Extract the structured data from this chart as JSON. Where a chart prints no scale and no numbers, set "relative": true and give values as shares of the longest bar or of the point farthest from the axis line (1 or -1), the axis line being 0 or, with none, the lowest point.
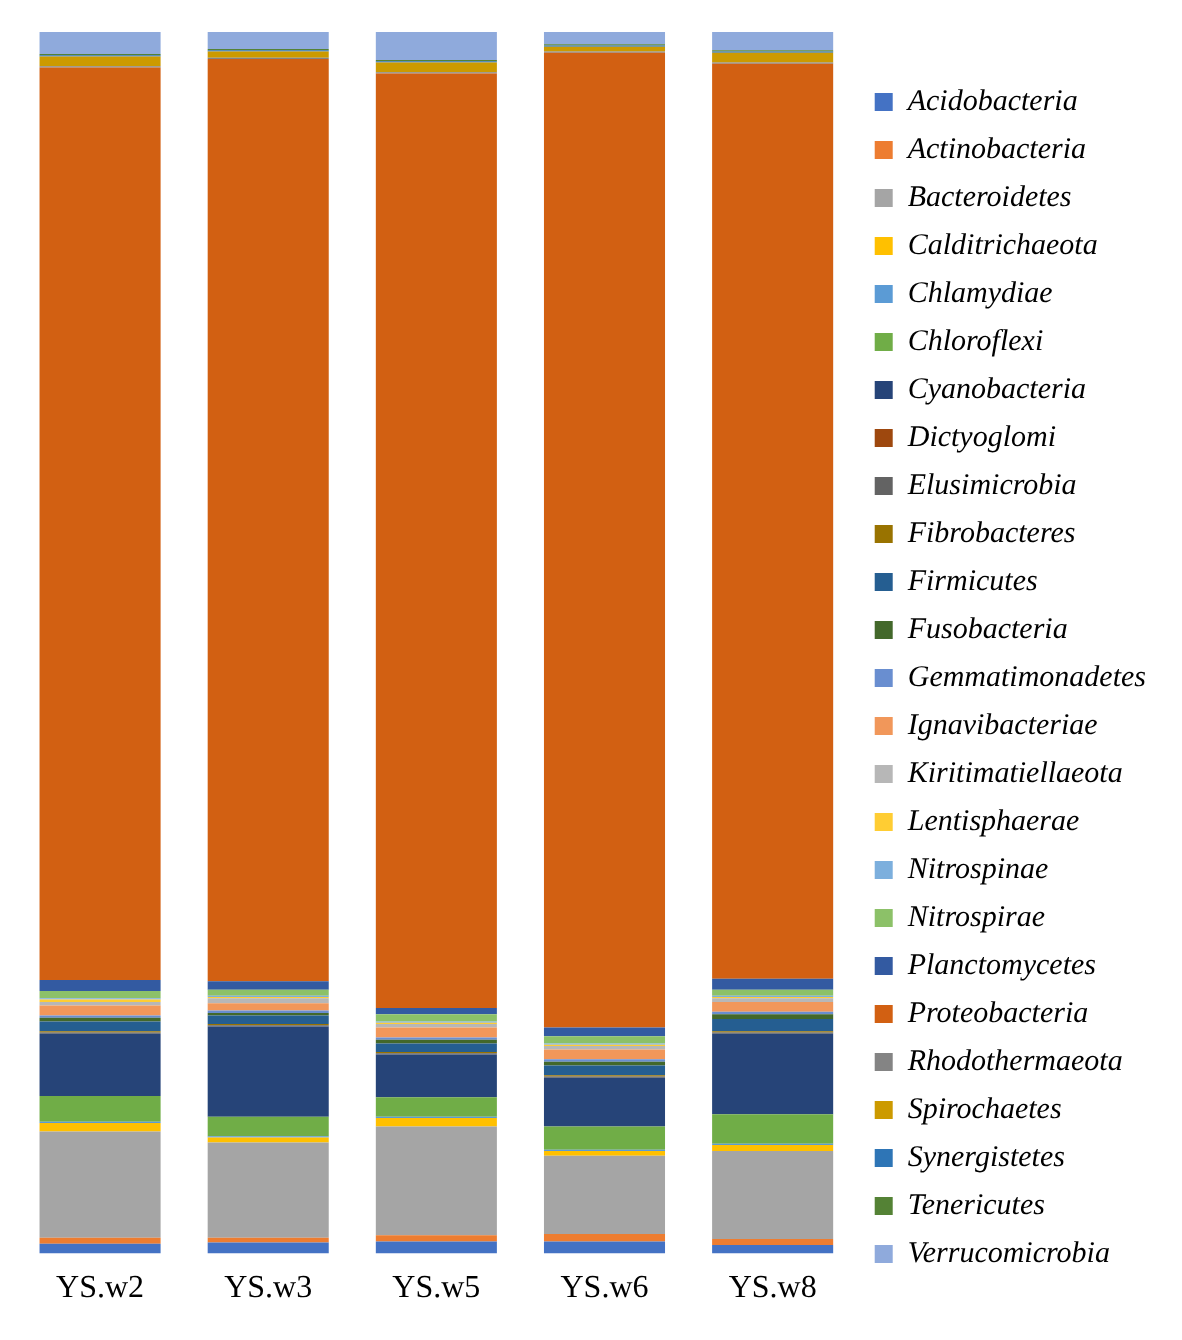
{
  "chart_data": {
    "type": "bar",
    "stacked": true,
    "relative": true,
    "legend": "right",
    "grid": false,
    "categories": [
      "YS.w2",
      "YS.w3",
      "YS.w5",
      "YS.w6",
      "YS.w8"
    ],
    "series": [
      {
        "name": "Acidobacteria",
        "color": "#4472c4",
        "values": [
          0.008,
          0.009,
          0.01,
          0.01,
          0.007
        ]
      },
      {
        "name": "Actinobacteria",
        "color": "#ed7d31",
        "values": [
          0.005,
          0.004,
          0.005,
          0.006,
          0.005
        ]
      },
      {
        "name": "Bacteroidetes",
        "color": "#a5a5a5",
        "values": [
          0.087,
          0.078,
          0.089,
          0.064,
          0.072
        ]
      },
      {
        "name": "Calditrichaeota",
        "color": "#ffc000",
        "values": [
          0.007,
          0.004,
          0.007,
          0.004,
          0.005
        ]
      },
      {
        "name": "Chlamydiae",
        "color": "#5b9bd5",
        "values": [
          0.001,
          0.001,
          0.001,
          0.001,
          0.001
        ]
      },
      {
        "name": "Chloroflexi",
        "color": "#70ad47",
        "values": [
          0.021,
          0.016,
          0.016,
          0.019,
          0.024
        ]
      },
      {
        "name": "Cyanobacteria",
        "color": "#264478",
        "values": [
          0.051,
          0.074,
          0.035,
          0.04,
          0.066
        ]
      },
      {
        "name": "Dictyoglomi",
        "color": "#9e480e",
        "values": [
          null,
          null,
          null,
          null,
          null
        ]
      },
      {
        "name": "Elusimicrobia",
        "color": "#636363",
        "values": [
          0.001,
          0.001,
          0.001,
          0.001,
          0.001
        ]
      },
      {
        "name": "Fibrobacteres",
        "color": "#997300",
        "values": [
          0.001,
          0.001,
          0.001,
          0.001,
          0.001
        ]
      },
      {
        "name": "Firmicutes",
        "color": "#255e91",
        "values": [
          0.008,
          0.007,
          0.007,
          0.008,
          0.01
        ]
      },
      {
        "name": "Fusobacteria",
        "color": "#43682b",
        "values": [
          0.003,
          0.002,
          0.003,
          0.003,
          0.004
        ]
      },
      {
        "name": "Gemmatimonadetes",
        "color": "#698ed0",
        "values": [
          0.002,
          0.002,
          0.002,
          0.002,
          0.002
        ]
      },
      {
        "name": "Ignavibacteriae",
        "color": "#f1975a",
        "values": [
          0.008,
          0.006,
          0.008,
          0.008,
          0.008
        ]
      },
      {
        "name": "Kiritimatiellaeota",
        "color": "#b7b7b7",
        "values": [
          0.003,
          0.004,
          0.003,
          0.003,
          0.003
        ]
      },
      {
        "name": "Lentisphaerae",
        "color": "#ffcd33",
        "values": [
          0.002,
          0.001,
          0.001,
          0.001,
          0.001
        ]
      },
      {
        "name": "Nitrospinae",
        "color": "#7cafdd",
        "values": [
          0.001,
          0.001,
          0.001,
          0.001,
          0.001
        ]
      },
      {
        "name": "Nitrospirae",
        "color": "#8cc168",
        "values": [
          0.006,
          0.005,
          0.006,
          0.006,
          0.005
        ]
      },
      {
        "name": "Planctomycetes",
        "color": "#335aa1",
        "values": [
          0.009,
          0.007,
          0.005,
          0.007,
          0.009
        ]
      },
      {
        "name": "Proteobacteria",
        "color": "#d26012",
        "values": [
          0.747,
          0.755,
          0.765,
          0.798,
          0.749
        ]
      },
      {
        "name": "Rhodothermaeota",
        "color": "#848484",
        "values": [
          0.001,
          0.001,
          0.001,
          0.001,
          0.001
        ]
      },
      {
        "name": "Spirochaetes",
        "color": "#cc9a00",
        "values": [
          0.008,
          0.005,
          0.008,
          0.004,
          0.008
        ]
      },
      {
        "name": "Synergistetes",
        "color": "#2e75b6",
        "values": [
          0.001,
          0.001,
          0.001,
          0.001,
          0.001
        ]
      },
      {
        "name": "Tenericutes",
        "color": "#548235",
        "values": [
          0.001,
          0.001,
          0.001,
          0.001,
          0.001
        ]
      },
      {
        "name": "Verrucomicrobia",
        "color": "#8faadc",
        "values": [
          0.018,
          0.014,
          0.023,
          0.01,
          0.015
        ]
      }
    ]
  }
}
